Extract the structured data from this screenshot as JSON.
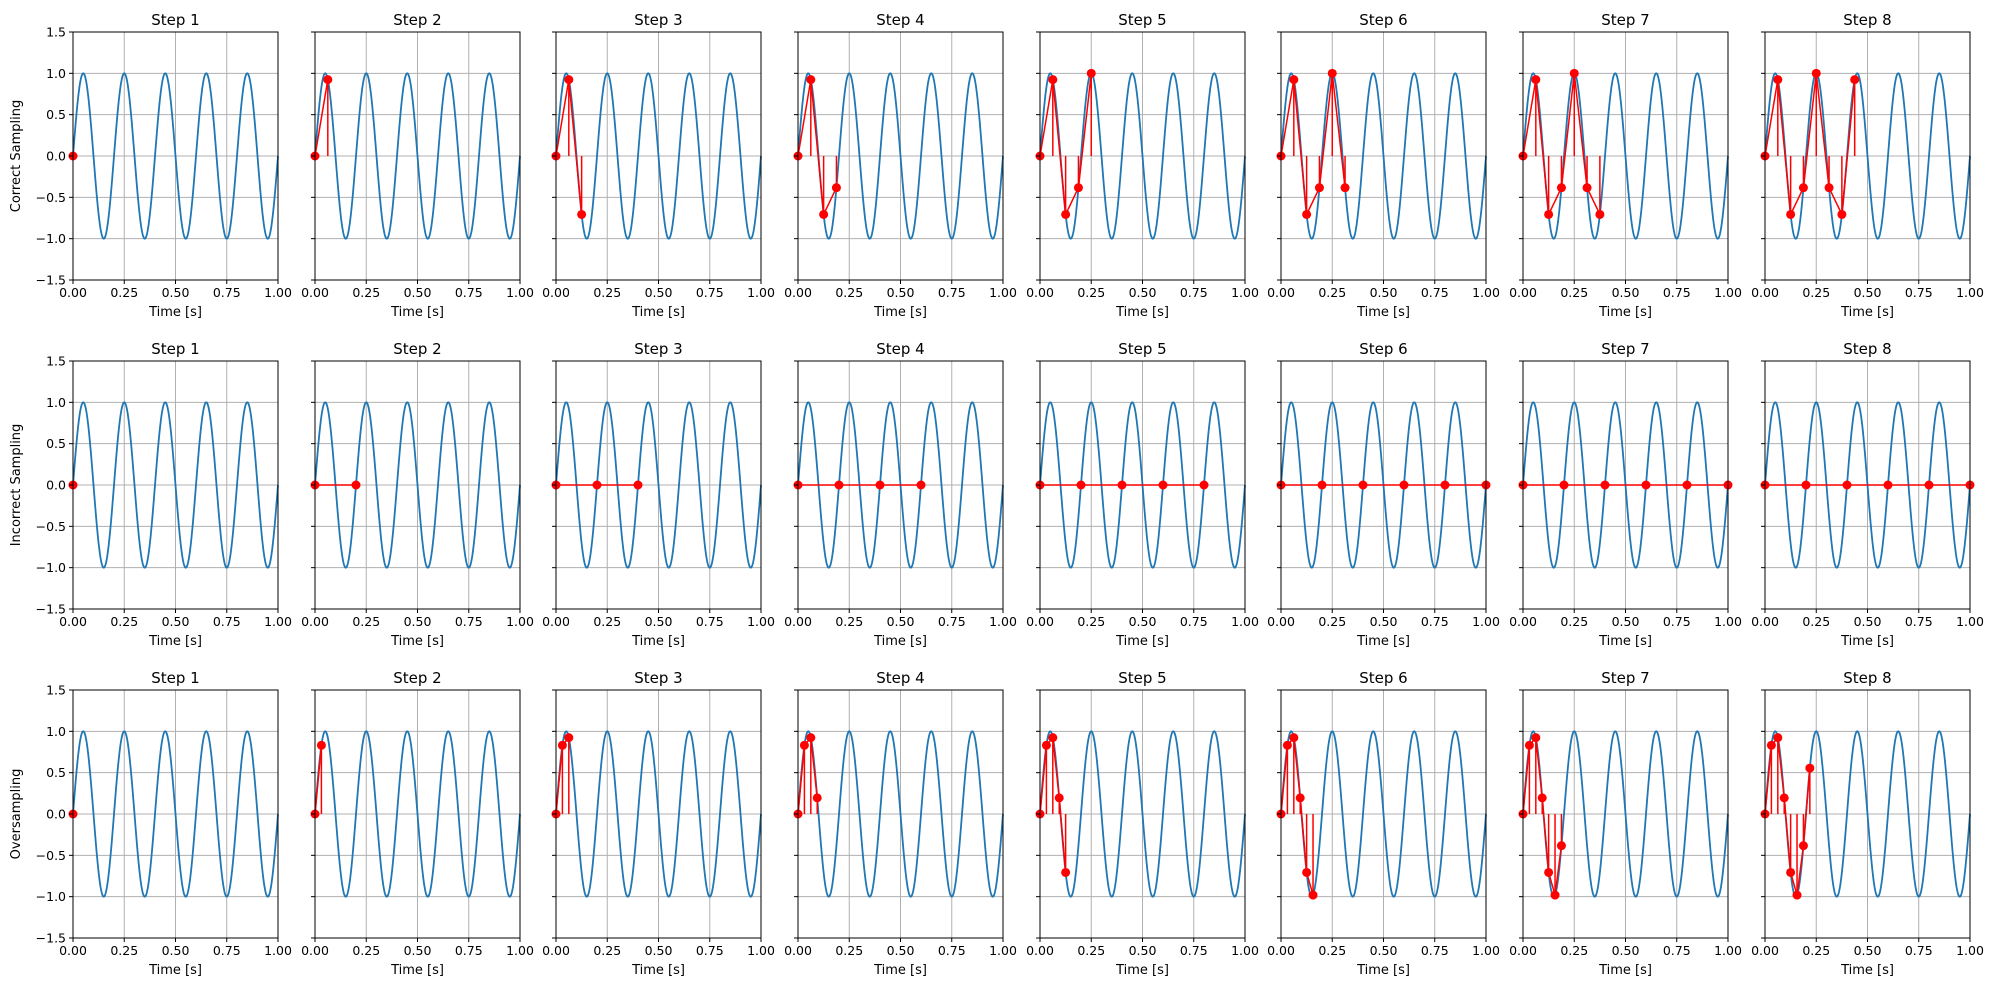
{
  "figure": {
    "rows": [
      {
        "ylabel": "Correct Sampling",
        "interval": 0.0625
      },
      {
        "ylabel": "Incorrect Sampling",
        "interval": 0.2
      },
      {
        "ylabel": "Oversampling",
        "interval": 0.03125
      }
    ],
    "step_titles": [
      "Step 1",
      "Step 2",
      "Step 3",
      "Step 4",
      "Step 5",
      "Step 6",
      "Step 7",
      "Step 8"
    ],
    "colors": {
      "signal": "#1f77b4",
      "samples": "#ff0000",
      "grid": "#b0b0b0",
      "axes": "#000000"
    }
  },
  "chart_data": {
    "type": "line",
    "signal": {
      "function": "sin",
      "frequency_hz": 5,
      "amplitude": 1
    },
    "xlabel": "Time [s]",
    "xlim": [
      0,
      1
    ],
    "ylim": [
      -1.5,
      1.5
    ],
    "xticks": [
      0,
      0.25,
      0.5,
      0.75,
      1
    ],
    "xtick_labels": [
      "0.00",
      "0.25",
      "0.50",
      "0.75",
      "1.00"
    ],
    "yticks": [
      -1.5,
      -1,
      -0.5,
      0,
      0.5,
      1,
      1.5
    ],
    "ytick_labels": [
      "−1.5",
      "−1.0",
      "−0.5",
      "0.0",
      "0.5",
      "1.0",
      "1.5"
    ],
    "grid": true,
    "samples_per_step": "step n shows the first n samples"
  }
}
